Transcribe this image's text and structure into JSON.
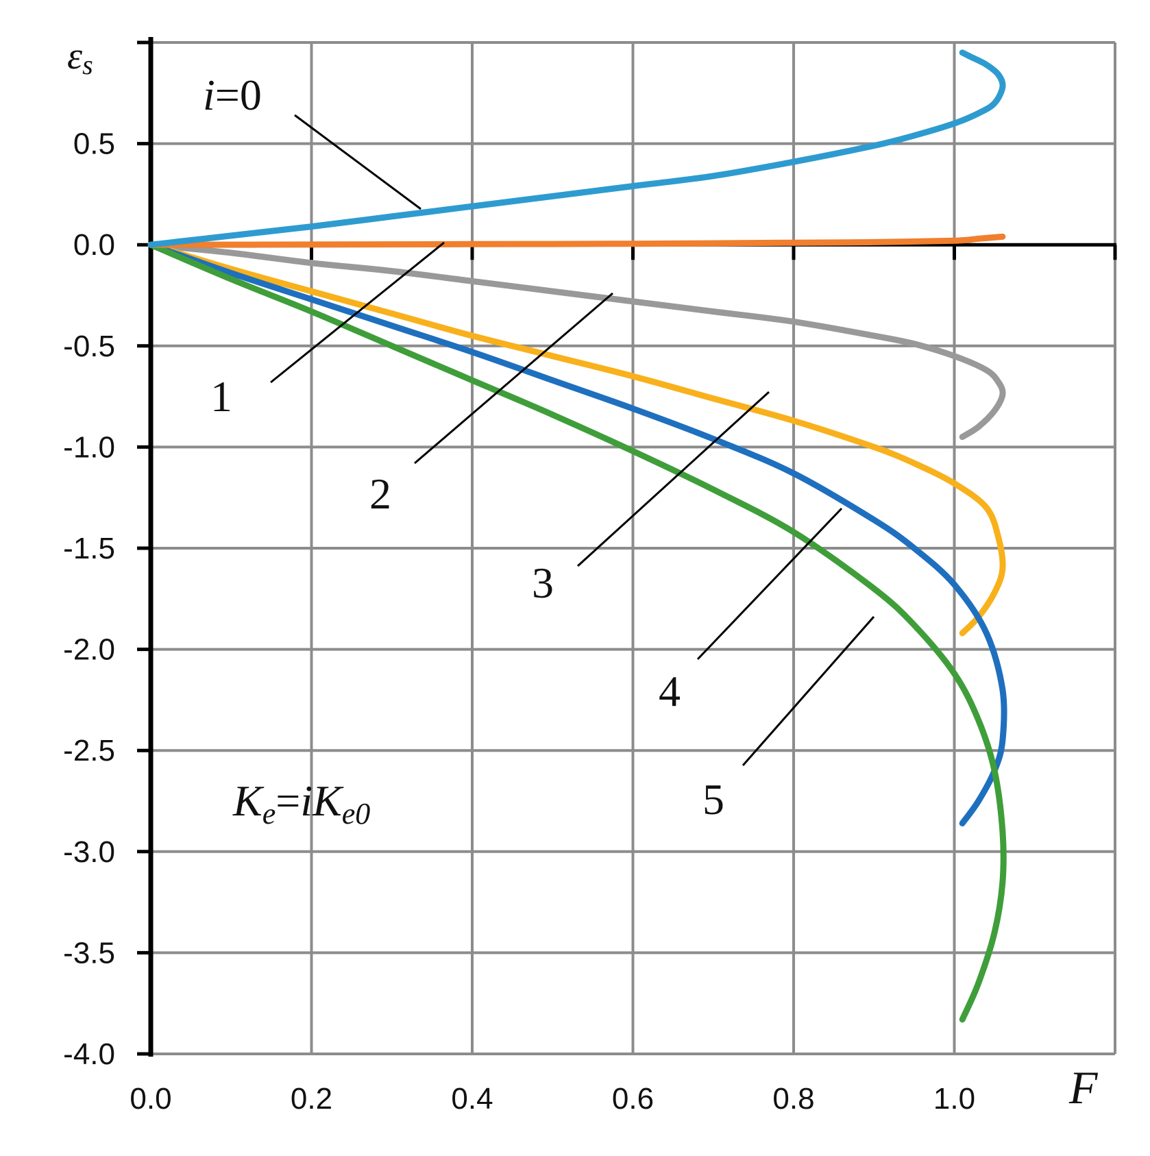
{
  "chart_data": {
    "type": "line",
    "xlabel": "F",
    "ylabel_main": "ε",
    "ylabel_sub": "s",
    "xlim": [
      0.0,
      1.2
    ],
    "ylim": [
      -4.0,
      1.0
    ],
    "x_ticks": [
      "0.0",
      "0.2",
      "0.4",
      "0.6",
      "0.8",
      "1.0"
    ],
    "x_tick_values": [
      0.0,
      0.2,
      0.4,
      0.6,
      0.8,
      1.0
    ],
    "y_ticks": [
      "0.5",
      "0.0",
      "-0.5",
      "-1.0",
      "-1.5",
      "-2.0",
      "-2.5",
      "-3.0",
      "-3.5",
      "-4.0"
    ],
    "y_tick_values": [
      0.5,
      0.0,
      -0.5,
      -1.0,
      -1.5,
      -2.0,
      -2.5,
      -3.0,
      -3.5,
      -4.0
    ],
    "grid": true,
    "annotation": {
      "K1": "K",
      "e1": "e",
      "eq": "=",
      "i": "i",
      "K2": "K",
      "e02": "e0"
    },
    "series": [
      {
        "label": "i=0",
        "label_i": "i",
        "label_rest": "=0",
        "color": "#2e9bd0",
        "x": [
          0.0,
          0.1,
          0.2,
          0.3,
          0.4,
          0.5,
          0.6,
          0.7,
          0.8,
          0.9,
          0.95,
          1.0,
          1.03,
          1.05,
          1.06,
          1.055,
          1.04,
          1.02,
          1.01
        ],
        "y": [
          0.0,
          0.045,
          0.09,
          0.14,
          0.19,
          0.24,
          0.29,
          0.34,
          0.41,
          0.49,
          0.54,
          0.6,
          0.65,
          0.7,
          0.78,
          0.84,
          0.89,
          0.93,
          0.95
        ]
      },
      {
        "label": "1",
        "color": "#f07f2e",
        "x": [
          0.0,
          0.2,
          0.4,
          0.6,
          0.8,
          0.9,
          1.0,
          1.03,
          1.06
        ],
        "y": [
          0.0,
          0.001,
          0.003,
          0.005,
          0.01,
          0.013,
          0.02,
          0.03,
          0.04
        ]
      },
      {
        "label": "2",
        "color": "#999999",
        "x": [
          0.0,
          0.1,
          0.2,
          0.3,
          0.4,
          0.5,
          0.6,
          0.7,
          0.8,
          0.9,
          0.95,
          1.0,
          1.04,
          1.055,
          1.06,
          1.05,
          1.03,
          1.01
        ],
        "y": [
          0.0,
          -0.04,
          -0.09,
          -0.13,
          -0.18,
          -0.23,
          -0.28,
          -0.33,
          -0.38,
          -0.45,
          -0.49,
          -0.55,
          -0.62,
          -0.68,
          -0.74,
          -0.82,
          -0.9,
          -0.95
        ]
      },
      {
        "label": "3",
        "color": "#f8b11c",
        "x": [
          0.0,
          0.1,
          0.2,
          0.3,
          0.4,
          0.5,
          0.6,
          0.7,
          0.8,
          0.9,
          0.95,
          1.0,
          1.04,
          1.055,
          1.06,
          1.05,
          1.03,
          1.01
        ],
        "y": [
          0.0,
          -0.12,
          -0.23,
          -0.34,
          -0.45,
          -0.55,
          -0.65,
          -0.76,
          -0.87,
          -1.0,
          -1.08,
          -1.18,
          -1.3,
          -1.45,
          -1.6,
          -1.72,
          -1.84,
          -1.92
        ]
      },
      {
        "label": "4",
        "color": "#1f6fbf",
        "x": [
          0.0,
          0.1,
          0.2,
          0.3,
          0.4,
          0.5,
          0.6,
          0.7,
          0.8,
          0.9,
          0.95,
          1.0,
          1.04,
          1.06,
          1.06,
          1.05,
          1.03,
          1.01
        ],
        "y": [
          0.0,
          -0.14,
          -0.27,
          -0.4,
          -0.53,
          -0.67,
          -0.81,
          -0.96,
          -1.13,
          -1.36,
          -1.5,
          -1.68,
          -1.92,
          -2.2,
          -2.45,
          -2.6,
          -2.75,
          -2.86
        ]
      },
      {
        "label": "5",
        "color": "#3f9e3a",
        "x": [
          0.0,
          0.1,
          0.2,
          0.3,
          0.4,
          0.5,
          0.6,
          0.7,
          0.8,
          0.9,
          0.95,
          1.0,
          1.03,
          1.05,
          1.06,
          1.06,
          1.05,
          1.03,
          1.01
        ],
        "y": [
          0.0,
          -0.17,
          -0.33,
          -0.5,
          -0.67,
          -0.84,
          -1.02,
          -1.21,
          -1.42,
          -1.7,
          -1.88,
          -2.12,
          -2.35,
          -2.6,
          -2.9,
          -3.15,
          -3.4,
          -3.65,
          -3.83
        ]
      }
    ]
  }
}
